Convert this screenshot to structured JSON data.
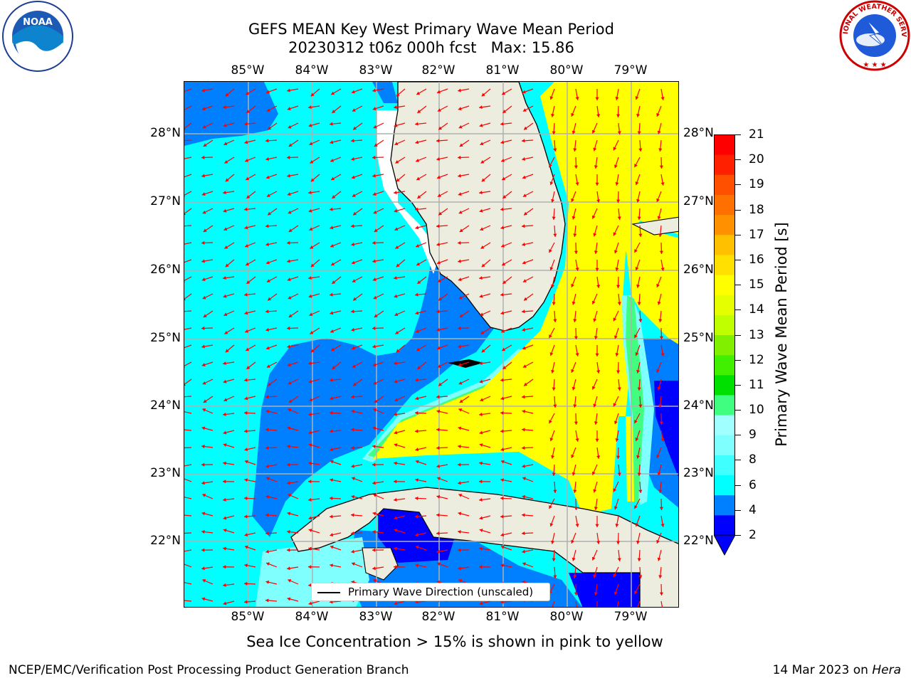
{
  "title": {
    "line1": "GEFS MEAN Key West Primary Wave Mean Period",
    "line2": "20230312 t06z 000h fcst   Max: 15.86"
  },
  "logos": {
    "left": {
      "name": "noaa-logo",
      "text": "NOAA"
    },
    "right": {
      "name": "nws-logo",
      "text": "NATIONAL WEATHER SERVICE"
    }
  },
  "map": {
    "lon_ticks": [
      "85°W",
      "84°W",
      "83°W",
      "82°W",
      "81°W",
      "80°W",
      "79°W"
    ],
    "lat_ticks": [
      "28°N",
      "27°N",
      "26°N",
      "25°N",
      "24°N",
      "23°N",
      "22°N"
    ],
    "legend_label": "Primary Wave Direction (unscaled)",
    "colors": {
      "land": "#ededdf",
      "arrow": "#ff0000",
      "grid": "#b0b0b0"
    }
  },
  "colorbar": {
    "title": "Primary Wave Mean Period [s]",
    "tick_labels": [
      "21",
      "20",
      "19",
      "18",
      "17",
      "16",
      "15",
      "14",
      "13",
      "12",
      "11",
      "10",
      "9",
      "8",
      "6",
      "4",
      "2"
    ],
    "bands": [
      "#0000ff",
      "#0080ff",
      "#00ffff",
      "#40ffff",
      "#80ffff",
      "#a0ffff",
      "#40ff80",
      "#00e000",
      "#40f000",
      "#80f000",
      "#c0ff00",
      "#e6ff00",
      "#ffff00",
      "#ffe000",
      "#ffc000",
      "#ff9000",
      "#ff7000",
      "#ff5000",
      "#ff2000",
      "#ff0000"
    ]
  },
  "note": "Sea Ice Concentration > 15% is shown in pink to yellow",
  "footer": {
    "left": "NCEP/EMC/Verification Post Processing Product Generation Branch",
    "right_prefix": "14 Mar 2023 on ",
    "right_machine": "Hera"
  }
}
